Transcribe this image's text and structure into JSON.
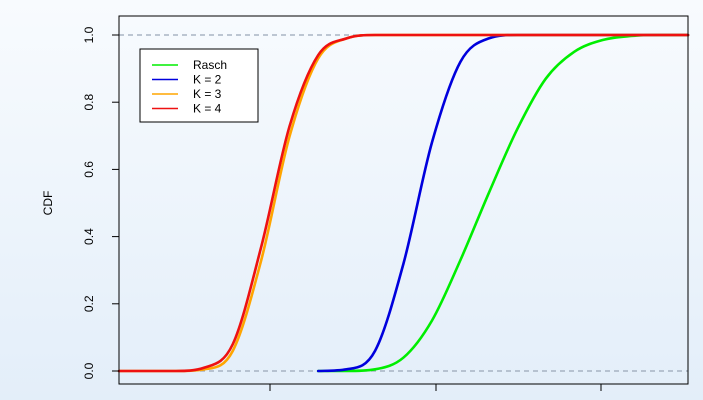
{
  "chart_data": {
    "type": "line",
    "title": "",
    "xlabel": "",
    "ylabel": "CDF",
    "x_ticks": [
      "",
      "",
      ""
    ],
    "y_ticks": [
      "0.0",
      "0.2",
      "0.4",
      "0.6",
      "0.8",
      "1.0"
    ],
    "xlim": [
      0,
      10
    ],
    "ylim": [
      0,
      1
    ],
    "reference_lines": [
      0,
      1
    ],
    "reference_line_color": "#9aa6b8",
    "grid": false,
    "legend_position": "top-left",
    "series": [
      {
        "name": "Rasch",
        "color": "#00ee00",
        "x": [
          3.5,
          4.0,
          4.5,
          5.0,
          5.5,
          6.0,
          6.5,
          7.0,
          7.5,
          8.0,
          8.5,
          9.0,
          9.5,
          10.0
        ],
        "y": [
          0.0,
          0.0,
          0.005,
          0.04,
          0.15,
          0.33,
          0.53,
          0.72,
          0.87,
          0.95,
          0.985,
          0.997,
          1.0,
          1.0
        ]
      },
      {
        "name": "K = 2",
        "color": "#0000dd",
        "x": [
          3.5,
          4.0,
          4.5,
          5.0,
          5.5,
          6.0,
          6.5,
          7.0,
          7.5,
          8.0,
          10.0
        ],
        "y": [
          0.0,
          0.005,
          0.06,
          0.32,
          0.68,
          0.92,
          0.99,
          1.0,
          1.0,
          1.0,
          1.0
        ]
      },
      {
        "name": "K = 3",
        "color": "#ffa500",
        "x": [
          0.0,
          1.0,
          1.5,
          2.0,
          2.5,
          3.0,
          3.5,
          4.0,
          4.5,
          5.0,
          5.5,
          10.0
        ],
        "y": [
          0.0,
          0.0,
          0.005,
          0.06,
          0.33,
          0.7,
          0.93,
          0.99,
          1.0,
          1.0,
          1.0,
          1.0
        ]
      },
      {
        "name": "K = 4",
        "color": "#ee1111",
        "x": [
          0.0,
          1.0,
          1.5,
          2.0,
          2.5,
          3.0,
          3.5,
          4.0,
          4.5,
          5.0,
          5.5,
          10.0
        ],
        "y": [
          0.0,
          0.0,
          0.01,
          0.08,
          0.37,
          0.73,
          0.94,
          0.99,
          1.0,
          1.0,
          1.0,
          1.0
        ]
      }
    ]
  }
}
